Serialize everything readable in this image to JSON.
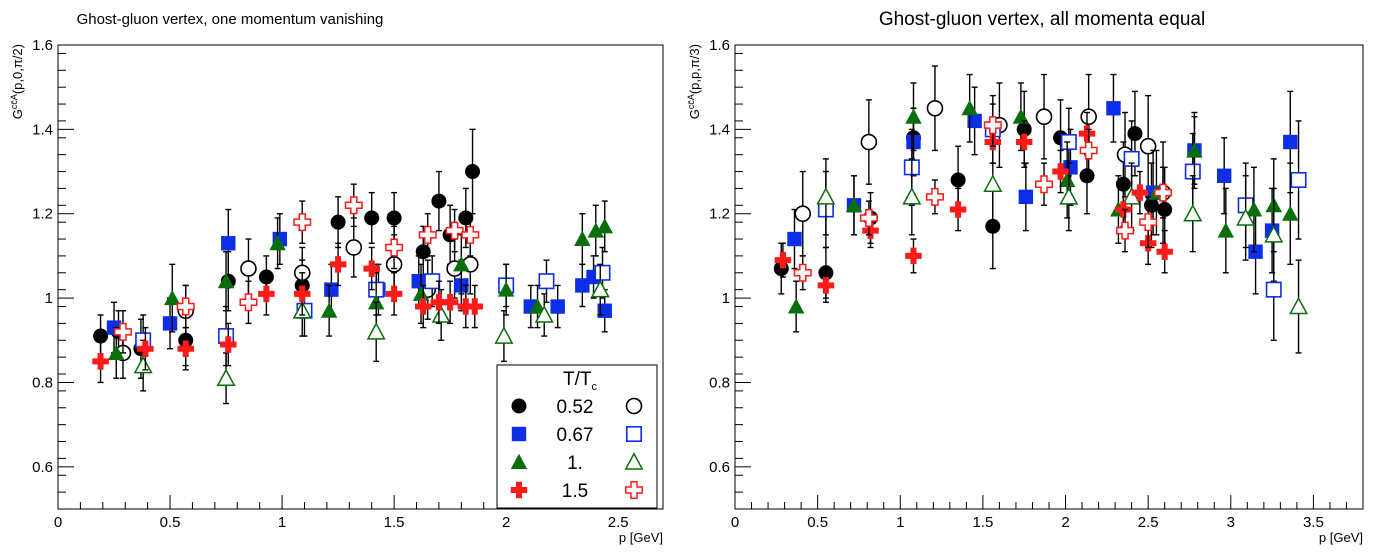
{
  "chart_data": [
    {
      "type": "scatter",
      "title": "Ghost-gluon vertex, one momentum vanishing",
      "xlabel": "p [GeV]",
      "ylabel": "G^{c c̄ A}(p,0,π/2)",
      "ylabel_main": "G",
      "ylabel_sup": "cc̄A",
      "ylabel_args": "(p,0,π/2)",
      "xlim": [
        0,
        2.7
      ],
      "ylim": [
        0.5,
        1.6
      ],
      "xticks": [
        "0",
        "0.5",
        "1",
        "1.5",
        "2",
        "2.5"
      ],
      "yticks": [
        "0.6",
        "0.8",
        "1",
        "1.2",
        "1.4",
        "1.6"
      ],
      "xtick_values": [
        0,
        0.5,
        1,
        1.5,
        2,
        2.5
      ],
      "ytick_values": [
        0.6,
        0.8,
        1.0,
        1.2,
        1.4,
        1.6
      ],
      "legend": {
        "title": "T/T",
        "title_sub": "c",
        "placement": "bottom-right",
        "entries": [
          "0.52",
          "0.67",
          "1.",
          "1.5"
        ]
      },
      "series": [
        {
          "marker": "circle",
          "filled": true,
          "color": "#000000",
          "points": [
            [
              0.19,
              0.91,
              0.05
            ],
            [
              0.27,
              0.92,
              0.05
            ],
            [
              0.37,
              0.88,
              0.07
            ],
            [
              0.57,
              0.9,
              0.06
            ],
            [
              0.76,
              1.04,
              0.07
            ],
            [
              0.93,
              1.05,
              0.05
            ],
            [
              1.09,
              1.03,
              0.06
            ],
            [
              1.25,
              1.18,
              0.06
            ],
            [
              1.4,
              1.19,
              0.06
            ],
            [
              1.5,
              1.19,
              0.06
            ],
            [
              1.63,
              1.11,
              0.06
            ],
            [
              1.7,
              1.23,
              0.07
            ],
            [
              1.75,
              1.15,
              0.07
            ],
            [
              1.82,
              1.19,
              0.07
            ],
            [
              1.85,
              1.3,
              0.1
            ]
          ]
        },
        {
          "marker": "circle",
          "filled": false,
          "color": "#000000",
          "points": [
            [
              0.29,
              0.87,
              0.06
            ],
            [
              0.57,
              0.97,
              0.06
            ],
            [
              0.85,
              1.07,
              0.07
            ],
            [
              1.09,
              1.06,
              0.06
            ],
            [
              1.32,
              1.12,
              0.07
            ],
            [
              1.5,
              1.08,
              0.07
            ],
            [
              1.65,
              1.02,
              0.07
            ],
            [
              1.77,
              1.07,
              0.07
            ],
            [
              1.84,
              1.08,
              0.07
            ]
          ]
        },
        {
          "marker": "square",
          "filled": true,
          "color": "#0b2ee6",
          "points": [
            [
              0.25,
              0.93,
              0.06
            ],
            [
              0.5,
              0.94,
              0.06
            ],
            [
              0.76,
              1.13,
              0.08
            ],
            [
              0.99,
              1.14,
              0.06
            ],
            [
              1.22,
              1.02,
              0.06
            ],
            [
              1.43,
              1.02,
              0.06
            ],
            [
              1.61,
              1.04,
              0.06
            ],
            [
              1.8,
              1.03,
              0.06
            ],
            [
              2.11,
              0.98,
              0.05
            ],
            [
              2.23,
              0.98,
              0.05
            ],
            [
              2.34,
              1.03,
              0.05
            ],
            [
              2.39,
              1.05,
              0.05
            ],
            [
              2.44,
              0.97,
              0.05
            ]
          ]
        },
        {
          "marker": "square",
          "filled": false,
          "color": "#0b2ee6",
          "points": [
            [
              0.38,
              0.9,
              0.06
            ],
            [
              0.75,
              0.91,
              0.07
            ],
            [
              1.1,
              0.97,
              0.06
            ],
            [
              1.42,
              1.02,
              0.06
            ],
            [
              1.67,
              1.04,
              0.06
            ],
            [
              2.0,
              1.03,
              0.05
            ],
            [
              2.18,
              1.04,
              0.05
            ],
            [
              2.43,
              1.06,
              0.06
            ]
          ]
        },
        {
          "marker": "triangle",
          "filled": true,
          "color": "#0a6e0a",
          "points": [
            [
              0.26,
              0.87,
              0.06
            ],
            [
              0.51,
              1.0,
              0.08
            ],
            [
              0.75,
              1.04,
              0.07
            ],
            [
              0.98,
              1.13,
              0.06
            ],
            [
              1.21,
              0.97,
              0.06
            ],
            [
              1.42,
              0.99,
              0.07
            ],
            [
              1.62,
              1.01,
              0.07
            ],
            [
              1.8,
              1.08,
              0.07
            ],
            [
              2.0,
              1.02,
              0.06
            ],
            [
              2.14,
              0.98,
              0.05
            ],
            [
              2.34,
              1.14,
              0.06
            ],
            [
              2.4,
              1.16,
              0.06
            ],
            [
              2.44,
              1.17,
              0.06
            ]
          ]
        },
        {
          "marker": "triangle",
          "filled": false,
          "color": "#0a6e0a",
          "points": [
            [
              0.38,
              0.84,
              0.06
            ],
            [
              0.75,
              0.81,
              0.06
            ],
            [
              1.09,
              0.97,
              0.06
            ],
            [
              1.42,
              0.92,
              0.07
            ],
            [
              1.71,
              0.96,
              0.06
            ],
            [
              1.99,
              0.91,
              0.06
            ],
            [
              2.17,
              0.96,
              0.05
            ],
            [
              2.42,
              1.02,
              0.06
            ]
          ]
        },
        {
          "marker": "cross",
          "filled": true,
          "color": "#ff1a1a",
          "points": [
            [
              0.19,
              0.85,
              0.05
            ],
            [
              0.39,
              0.88,
              0.05
            ],
            [
              0.57,
              0.88,
              0.05
            ],
            [
              0.76,
              0.89,
              0.05
            ],
            [
              0.93,
              1.01,
              0.05
            ],
            [
              1.09,
              1.01,
              0.05
            ],
            [
              1.25,
              1.08,
              0.05
            ],
            [
              1.4,
              1.07,
              0.05
            ],
            [
              1.5,
              1.01,
              0.05
            ],
            [
              1.63,
              0.98,
              0.05
            ],
            [
              1.7,
              0.99,
              0.05
            ],
            [
              1.75,
              0.99,
              0.05
            ],
            [
              1.82,
              0.98,
              0.05
            ],
            [
              1.86,
              0.98,
              0.05
            ]
          ]
        },
        {
          "marker": "cross",
          "filled": false,
          "color": "#ff1a1a",
          "points": [
            [
              0.29,
              0.92,
              0.05
            ],
            [
              0.57,
              0.98,
              0.05
            ],
            [
              0.85,
              0.99,
              0.05
            ],
            [
              1.09,
              1.18,
              0.05
            ],
            [
              1.32,
              1.22,
              0.05
            ],
            [
              1.5,
              1.12,
              0.05
            ],
            [
              1.65,
              1.15,
              0.05
            ],
            [
              1.77,
              1.16,
              0.05
            ],
            [
              1.84,
              1.15,
              0.05
            ]
          ]
        }
      ]
    },
    {
      "type": "scatter",
      "title": "Ghost-gluon vertex, all momenta equal",
      "xlabel": "p [GeV]",
      "ylabel": "G^{c c̄ A}(p,p,π/3)",
      "ylabel_main": "G",
      "ylabel_sup": "cc̄A",
      "ylabel_args": "(p,p,π/3)",
      "xlim": [
        0,
        3.8
      ],
      "ylim": [
        0.5,
        1.6
      ],
      "xticks": [
        "0",
        "0.5",
        "1",
        "1.5",
        "2",
        "2.5",
        "3",
        "3.5"
      ],
      "yticks": [
        "0.6",
        "0.8",
        "1",
        "1.2",
        "1.4",
        "1.6"
      ],
      "xtick_values": [
        0,
        0.5,
        1,
        1.5,
        2,
        2.5,
        3,
        3.5
      ],
      "ytick_values": [
        0.6,
        0.8,
        1.0,
        1.2,
        1.4,
        1.6
      ],
      "series": [
        {
          "marker": "circle",
          "filled": true,
          "color": "#000000",
          "points": [
            [
              0.28,
              1.07,
              0.06
            ],
            [
              0.55,
              1.06,
              0.06
            ],
            [
              0.82,
              1.19,
              0.06
            ],
            [
              1.08,
              1.38,
              0.07
            ],
            [
              1.35,
              1.28,
              0.08
            ],
            [
              1.56,
              1.17,
              0.1
            ],
            [
              1.75,
              1.4,
              0.09
            ],
            [
              1.97,
              1.38,
              0.09
            ],
            [
              2.13,
              1.29,
              0.09
            ],
            [
              2.35,
              1.27,
              0.1
            ],
            [
              2.42,
              1.39,
              0.1
            ],
            [
              2.52,
              1.22,
              0.1
            ],
            [
              2.6,
              1.21,
              0.1
            ]
          ]
        },
        {
          "marker": "circle",
          "filled": false,
          "color": "#000000",
          "points": [
            [
              0.41,
              1.2,
              0.1
            ],
            [
              0.81,
              1.37,
              0.1
            ],
            [
              1.21,
              1.45,
              0.1
            ],
            [
              1.6,
              1.41,
              0.1
            ],
            [
              1.87,
              1.43,
              0.1
            ],
            [
              2.14,
              1.43,
              0.1
            ],
            [
              2.36,
              1.34,
              0.1
            ],
            [
              2.5,
              1.36,
              0.12
            ],
            [
              2.59,
              1.25,
              0.12
            ]
          ]
        },
        {
          "marker": "square",
          "filled": true,
          "color": "#0b2ee6",
          "points": [
            [
              0.36,
              1.14,
              0.07
            ],
            [
              0.72,
              1.22,
              0.07
            ],
            [
              1.08,
              1.37,
              0.08
            ],
            [
              1.45,
              1.42,
              0.08
            ],
            [
              1.76,
              1.24,
              0.08
            ],
            [
              2.03,
              1.31,
              0.09
            ],
            [
              2.29,
              1.45,
              0.08
            ],
            [
              2.53,
              1.25,
              0.1
            ],
            [
              2.78,
              1.35,
              0.08
            ],
            [
              2.96,
              1.29,
              0.09
            ],
            [
              3.15,
              1.11,
              0.1
            ],
            [
              3.25,
              1.16,
              0.1
            ],
            [
              3.36,
              1.37,
              0.12
            ]
          ]
        },
        {
          "marker": "square",
          "filled": false,
          "color": "#0b2ee6",
          "points": [
            [
              0.55,
              1.21,
              0.09
            ],
            [
              1.07,
              1.31,
              0.09
            ],
            [
              1.56,
              1.4,
              0.08
            ],
            [
              2.02,
              1.37,
              0.08
            ],
            [
              2.4,
              1.33,
              0.09
            ],
            [
              2.77,
              1.3,
              0.09
            ],
            [
              3.09,
              1.22,
              0.1
            ],
            [
              3.26,
              1.02,
              0.12
            ],
            [
              3.41,
              1.28,
              0.14
            ]
          ]
        },
        {
          "marker": "triangle",
          "filled": true,
          "color": "#0a6e0a",
          "points": [
            [
              0.37,
              0.98,
              0.06
            ],
            [
              0.72,
              1.22,
              0.07
            ],
            [
              1.08,
              1.43,
              0.08
            ],
            [
              1.42,
              1.45,
              0.08
            ],
            [
              1.73,
              1.43,
              0.08
            ],
            [
              2.01,
              1.28,
              0.09
            ],
            [
              2.32,
              1.21,
              0.08
            ],
            [
              2.55,
              1.25,
              0.1
            ],
            [
              2.78,
              1.35,
              0.09
            ],
            [
              2.97,
              1.16,
              0.1
            ],
            [
              3.14,
              1.21,
              0.1
            ],
            [
              3.26,
              1.22,
              0.11
            ],
            [
              3.36,
              1.2,
              0.12
            ]
          ]
        },
        {
          "marker": "triangle",
          "filled": false,
          "color": "#0a6e0a",
          "points": [
            [
              0.55,
              1.24,
              0.09
            ],
            [
              1.07,
              1.24,
              0.09
            ],
            [
              1.56,
              1.27,
              0.09
            ],
            [
              2.02,
              1.24,
              0.08
            ],
            [
              2.4,
              1.24,
              0.08
            ],
            [
              2.77,
              1.2,
              0.09
            ],
            [
              3.09,
              1.19,
              0.1
            ],
            [
              3.26,
              1.15,
              0.11
            ],
            [
              3.41,
              0.98,
              0.11
            ]
          ]
        },
        {
          "marker": "cross",
          "filled": true,
          "color": "#ff1a1a",
          "points": [
            [
              0.29,
              1.09,
              0.04
            ],
            [
              0.55,
              1.03,
              0.04
            ],
            [
              0.82,
              1.16,
              0.04
            ],
            [
              1.08,
              1.1,
              0.04
            ],
            [
              1.35,
              1.21,
              0.05
            ],
            [
              1.56,
              1.37,
              0.05
            ],
            [
              1.75,
              1.37,
              0.05
            ],
            [
              1.97,
              1.3,
              0.05
            ],
            [
              2.13,
              1.39,
              0.05
            ],
            [
              2.35,
              1.21,
              0.05
            ],
            [
              2.45,
              1.25,
              0.05
            ],
            [
              2.5,
              1.13,
              0.05
            ],
            [
              2.6,
              1.11,
              0.05
            ]
          ]
        },
        {
          "marker": "cross",
          "filled": false,
          "color": "#ff1a1a",
          "points": [
            [
              0.41,
              1.06,
              0.04
            ],
            [
              0.81,
              1.19,
              0.04
            ],
            [
              1.21,
              1.24,
              0.04
            ],
            [
              1.56,
              1.41,
              0.05
            ],
            [
              1.87,
              1.27,
              0.05
            ],
            [
              2.14,
              1.35,
              0.05
            ],
            [
              2.36,
              1.16,
              0.05
            ],
            [
              2.5,
              1.18,
              0.06
            ],
            [
              2.59,
              1.25,
              0.06
            ]
          ]
        }
      ]
    }
  ]
}
